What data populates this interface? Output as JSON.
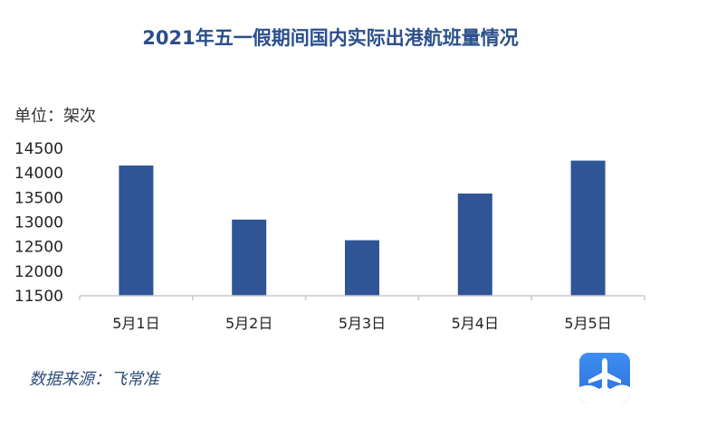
{
  "chart_data": {
    "type": "bar",
    "title": "2021年五一假期间国内实际出港航班量情况",
    "unit_label": "单位：架次",
    "categories": [
      "5月1日",
      "5月2日",
      "5月3日",
      "5月4日",
      "5月5日"
    ],
    "values": [
      14150,
      13050,
      12630,
      13580,
      14250
    ],
    "ylim": [
      11500,
      14500
    ],
    "yticks": [
      11500,
      12000,
      12500,
      13000,
      13500,
      14000,
      14500
    ],
    "bar_color": "#2f5597",
    "grid": false,
    "legend": "none"
  },
  "source": "数据来源：飞常准",
  "logo_icon": "airplane-icon"
}
